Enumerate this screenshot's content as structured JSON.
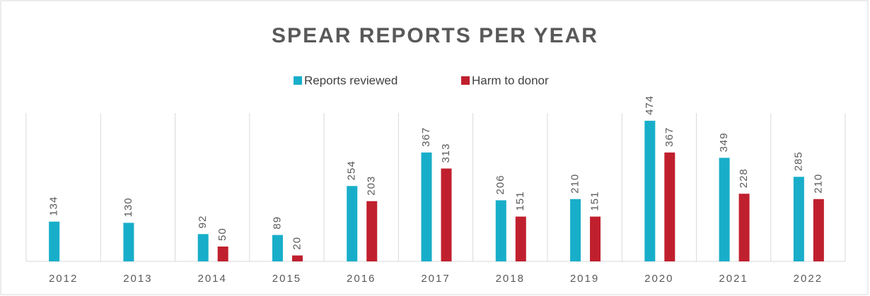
{
  "chart_data": {
    "type": "bar",
    "title": "SPEAR REPORTS PER YEAR",
    "categories": [
      "2012",
      "2013",
      "2014",
      "2015",
      "2016",
      "2017",
      "2018",
      "2019",
      "2020",
      "2021",
      "2022"
    ],
    "series": [
      {
        "name": "Reports reviewed",
        "color": "#18aec9",
        "values": [
          134,
          130,
          92,
          89,
          254,
          367,
          206,
          210,
          474,
          349,
          285
        ]
      },
      {
        "name": "Harm to donor",
        "color": "#c0202e",
        "values": [
          null,
          null,
          50,
          20,
          203,
          313,
          151,
          151,
          367,
          228,
          210
        ]
      }
    ],
    "ylim": [
      0,
      500
    ],
    "legend": "top"
  }
}
